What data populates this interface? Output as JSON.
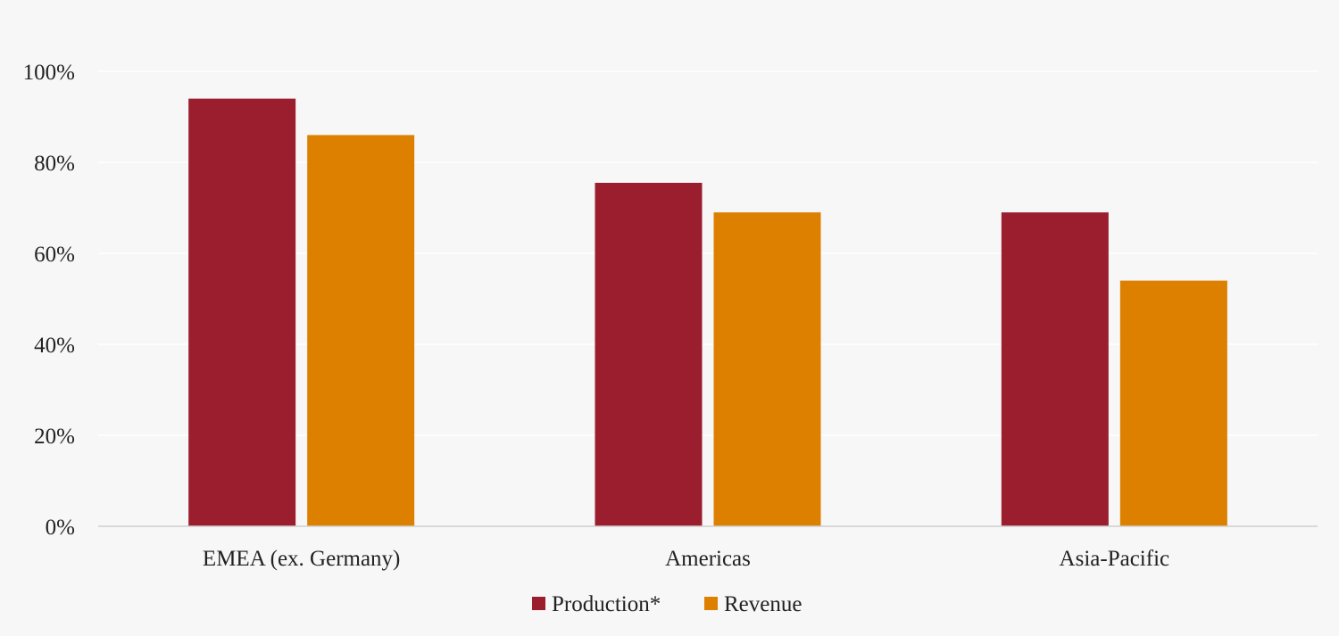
{
  "chart_data": {
    "type": "bar",
    "categories": [
      "EMEA (ex. Germany)",
      "Americas",
      "Asia-Pacific"
    ],
    "series": [
      {
        "name": "Production*",
        "values": [
          94,
          75.5,
          69
        ],
        "color": "#9b1e2f"
      },
      {
        "name": "Revenue",
        "values": [
          86,
          69,
          54
        ],
        "color": "#dd8000"
      }
    ],
    "ylim": [
      0,
      100
    ],
    "yticks": [
      0,
      20,
      40,
      60,
      80,
      100
    ],
    "ytick_labels": [
      "0%",
      "20%",
      "40%",
      "60%",
      "80%",
      "100%"
    ],
    "grid": true,
    "legend_position": "bottom",
    "title": "",
    "xlabel": "",
    "ylabel": ""
  }
}
